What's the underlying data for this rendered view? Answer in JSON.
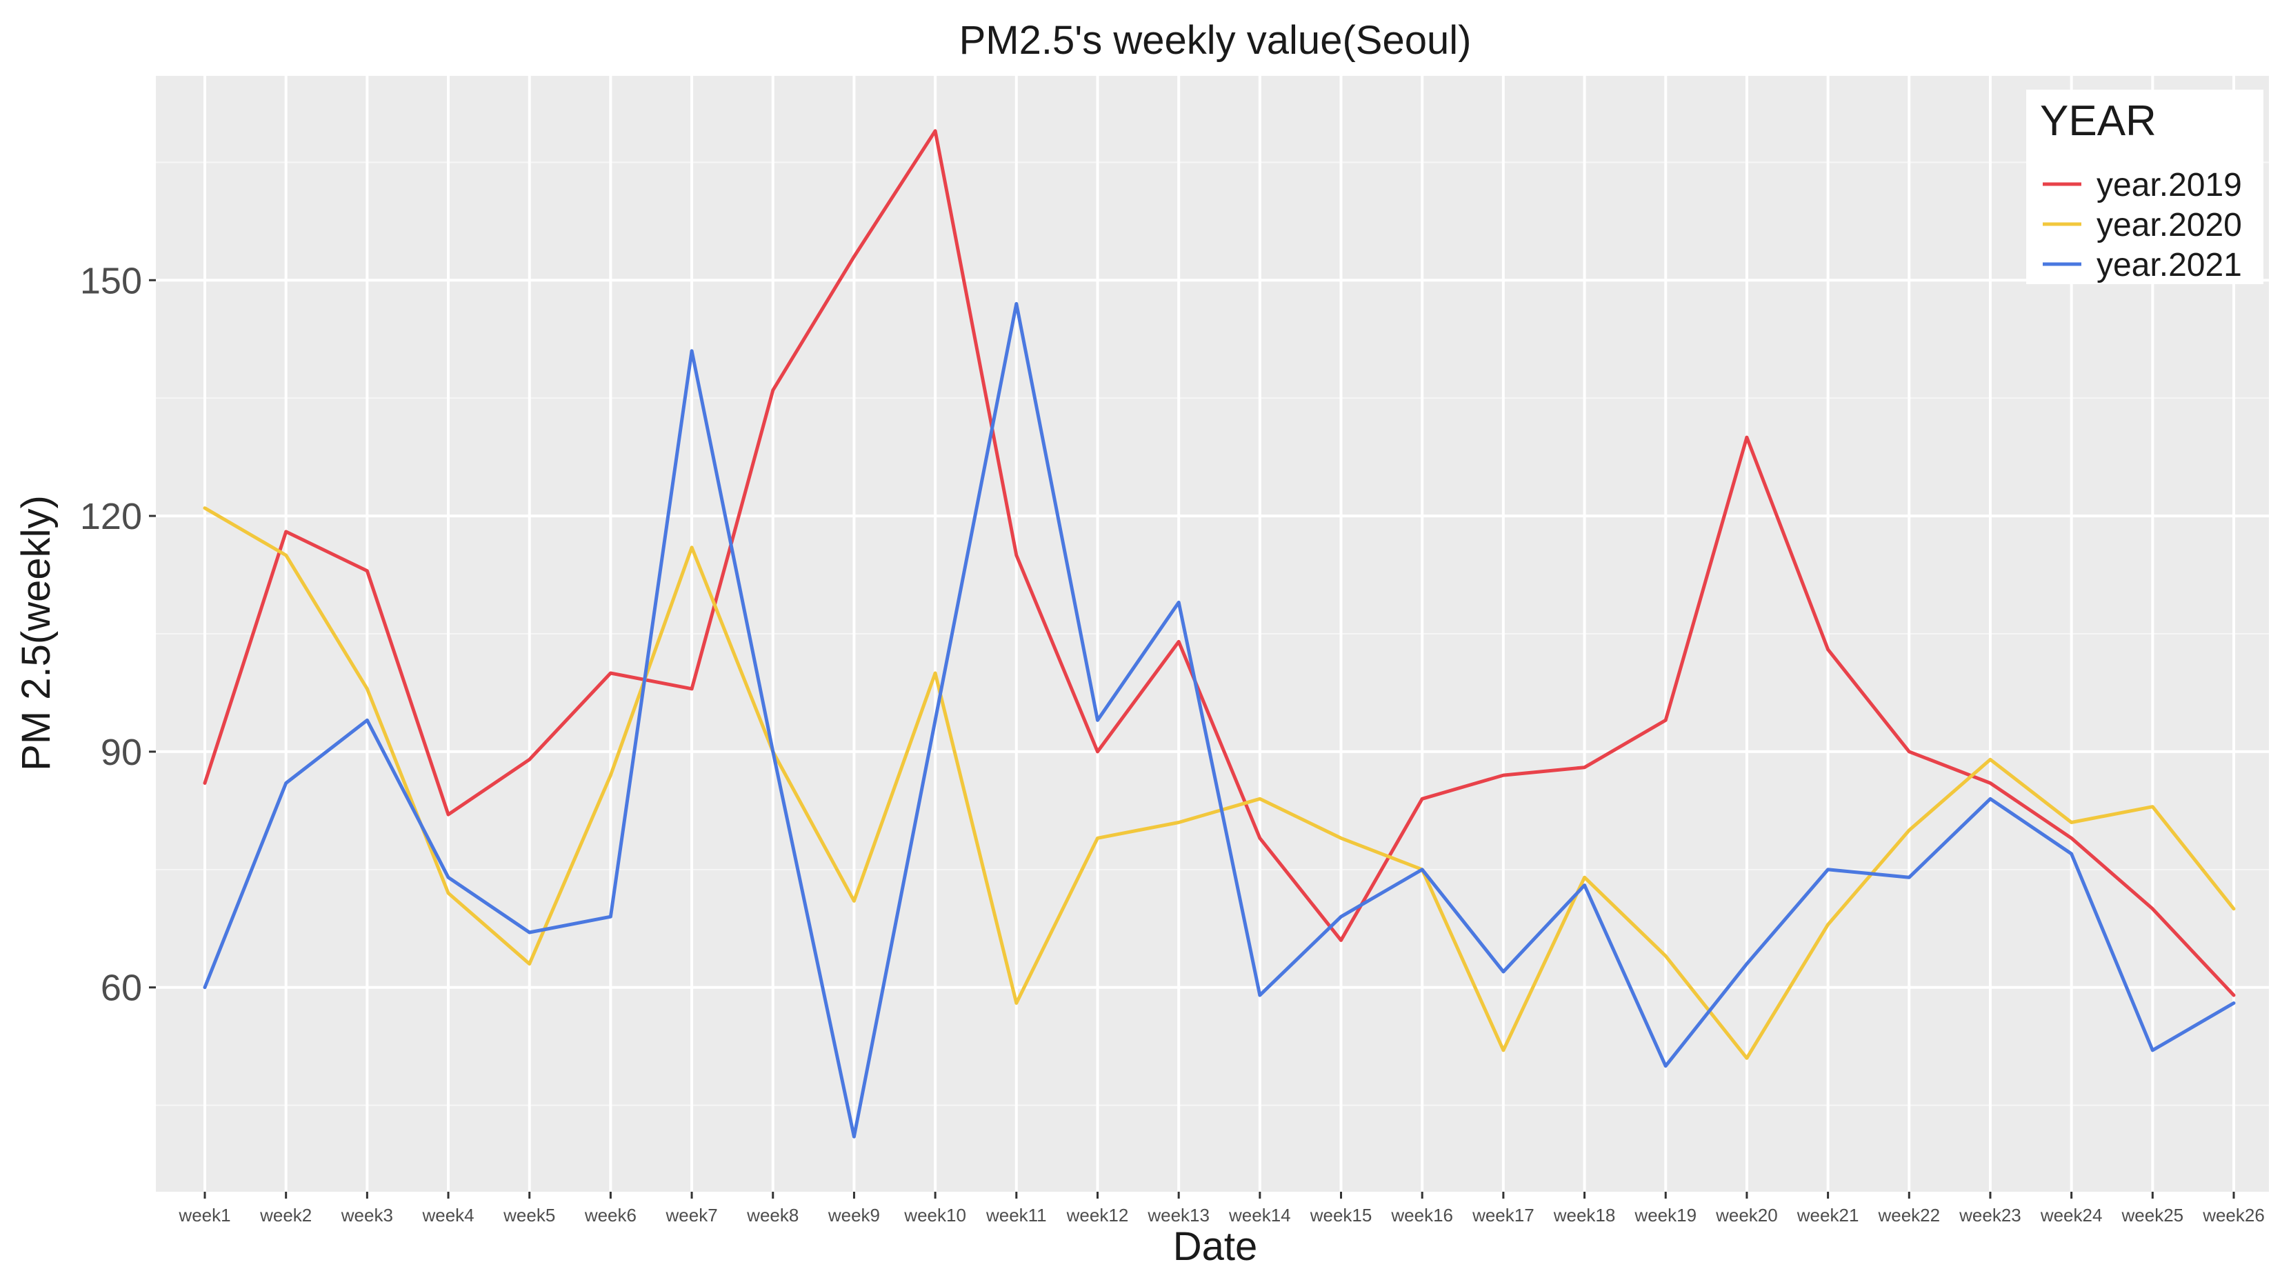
{
  "chart_data": {
    "type": "line",
    "title": "PM2.5's weekly value(Seoul)",
    "xlabel": "Date",
    "ylabel": "PM 2.5(weekly)",
    "categories": [
      "week1",
      "week2",
      "week3",
      "week4",
      "week5",
      "week6",
      "week7",
      "week8",
      "week9",
      "week10",
      "week11",
      "week12",
      "week13",
      "week14",
      "week15",
      "week16",
      "week17",
      "week18",
      "week19",
      "week20",
      "week21",
      "week22",
      "week23",
      "week24",
      "week25",
      "week26"
    ],
    "ylim": [
      34,
      176
    ],
    "yticks": [
      60,
      90,
      120,
      150
    ],
    "grid": true,
    "legend": {
      "title": "YEAR",
      "position": "top-right"
    },
    "series": [
      {
        "name": "year.2019",
        "color": "#e8424a",
        "values": [
          86,
          118,
          113,
          82,
          89,
          100,
          98,
          136,
          153,
          169,
          115,
          90,
          104,
          79,
          66,
          84,
          87,
          88,
          94,
          130,
          103,
          90,
          86,
          79,
          70,
          59
        ]
      },
      {
        "name": "year.2020",
        "color": "#f2c73c",
        "values": [
          121,
          115,
          98,
          72,
          63,
          87,
          116,
          90,
          71,
          100,
          58,
          79,
          81,
          84,
          79,
          75,
          52,
          74,
          64,
          51,
          68,
          80,
          89,
          81,
          83,
          70
        ]
      },
      {
        "name": "year.2021",
        "color": "#4a78e0",
        "values": [
          60,
          86,
          94,
          74,
          67,
          69,
          141,
          90,
          41,
          94,
          147,
          94,
          109,
          59,
          69,
          75,
          62,
          73,
          50,
          63,
          75,
          74,
          84,
          77,
          52,
          58
        ]
      }
    ]
  }
}
